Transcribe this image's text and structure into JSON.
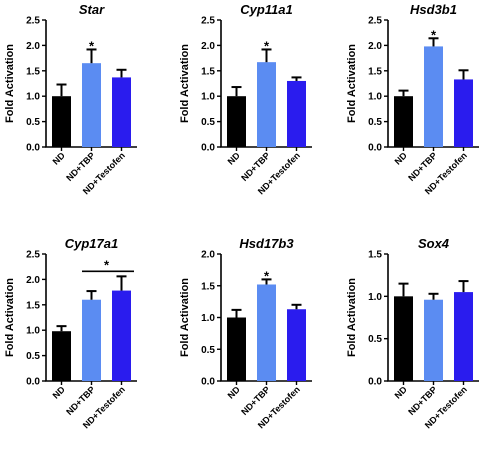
{
  "chart_data": [
    {
      "type": "bar",
      "title": "Star",
      "ylabel": "Fold Activation",
      "categories": [
        "ND",
        "ND+TBP",
        "ND+Testofen"
      ],
      "values": [
        1.0,
        1.65,
        1.37
      ],
      "errors": [
        0.23,
        0.27,
        0.15
      ],
      "colors": [
        "#000000",
        "#5b8cf2",
        "#2a1cee"
      ],
      "ylim": [
        0,
        2.5
      ],
      "yticks": [
        "0.0",
        "0.5",
        "1.0",
        "1.5",
        "2.0",
        "2.5"
      ],
      "significance": [
        {
          "bar": 1,
          "label": "*"
        }
      ]
    },
    {
      "type": "bar",
      "title": "Cyp11a1",
      "ylabel": "Fold Activation",
      "categories": [
        "ND",
        "ND+TBP",
        "ND+Testofen"
      ],
      "values": [
        1.0,
        1.67,
        1.3
      ],
      "errors": [
        0.18,
        0.25,
        0.07
      ],
      "colors": [
        "#000000",
        "#5b8cf2",
        "#2a1cee"
      ],
      "ylim": [
        0,
        2.5
      ],
      "yticks": [
        "0.0",
        "0.5",
        "1.0",
        "1.5",
        "2.0",
        "2.5"
      ],
      "significance": [
        {
          "bar": 1,
          "label": "*"
        }
      ]
    },
    {
      "type": "bar",
      "title": "Hsd3b1",
      "ylabel": "Fold Activation",
      "categories": [
        "ND",
        "ND+TBP",
        "ND+Testofen"
      ],
      "values": [
        1.0,
        1.98,
        1.33
      ],
      "errors": [
        0.11,
        0.16,
        0.18
      ],
      "colors": [
        "#000000",
        "#5b8cf2",
        "#2a1cee"
      ],
      "ylim": [
        0,
        2.5
      ],
      "yticks": [
        "0.0",
        "0.5",
        "1.0",
        "1.5",
        "2.0",
        "2.5"
      ],
      "significance": [
        {
          "bar": 1,
          "label": "*"
        }
      ]
    },
    {
      "type": "bar",
      "title": "Cyp17a1",
      "ylabel": "Fold Activation",
      "categories": [
        "ND",
        "ND+TBP",
        "ND+Testofen"
      ],
      "values": [
        0.98,
        1.6,
        1.78
      ],
      "errors": [
        0.1,
        0.17,
        0.28
      ],
      "colors": [
        "#000000",
        "#5b8cf2",
        "#2a1cee"
      ],
      "ylim": [
        0,
        2.5
      ],
      "yticks": [
        "0.0",
        "0.5",
        "1.0",
        "1.5",
        "2.0",
        "2.5"
      ],
      "significance": [
        {
          "from": 1,
          "to": 2,
          "label": "*"
        }
      ]
    },
    {
      "type": "bar",
      "title": "Hsd17b3",
      "ylabel": "Fold Activation",
      "categories": [
        "ND",
        "ND+TBP",
        "ND+Testofen"
      ],
      "values": [
        1.0,
        1.52,
        1.13
      ],
      "errors": [
        0.12,
        0.08,
        0.07
      ],
      "colors": [
        "#000000",
        "#5b8cf2",
        "#2a1cee"
      ],
      "ylim": [
        0,
        2.0
      ],
      "yticks": [
        "0.0",
        "0.5",
        "1.0",
        "1.5",
        "2.0"
      ],
      "significance": [
        {
          "bar": 1,
          "label": "*"
        }
      ]
    },
    {
      "type": "bar",
      "title": "Sox4",
      "ylabel": "Fold Activation",
      "categories": [
        "ND",
        "ND+TBP",
        "ND+Testofen"
      ],
      "values": [
        1.0,
        0.96,
        1.05
      ],
      "errors": [
        0.15,
        0.07,
        0.13
      ],
      "colors": [
        "#000000",
        "#5b8cf2",
        "#2a1cee"
      ],
      "ylim": [
        0,
        1.5
      ],
      "yticks": [
        "0.0",
        "0.5",
        "1.0",
        "1.5"
      ],
      "significance": []
    }
  ]
}
